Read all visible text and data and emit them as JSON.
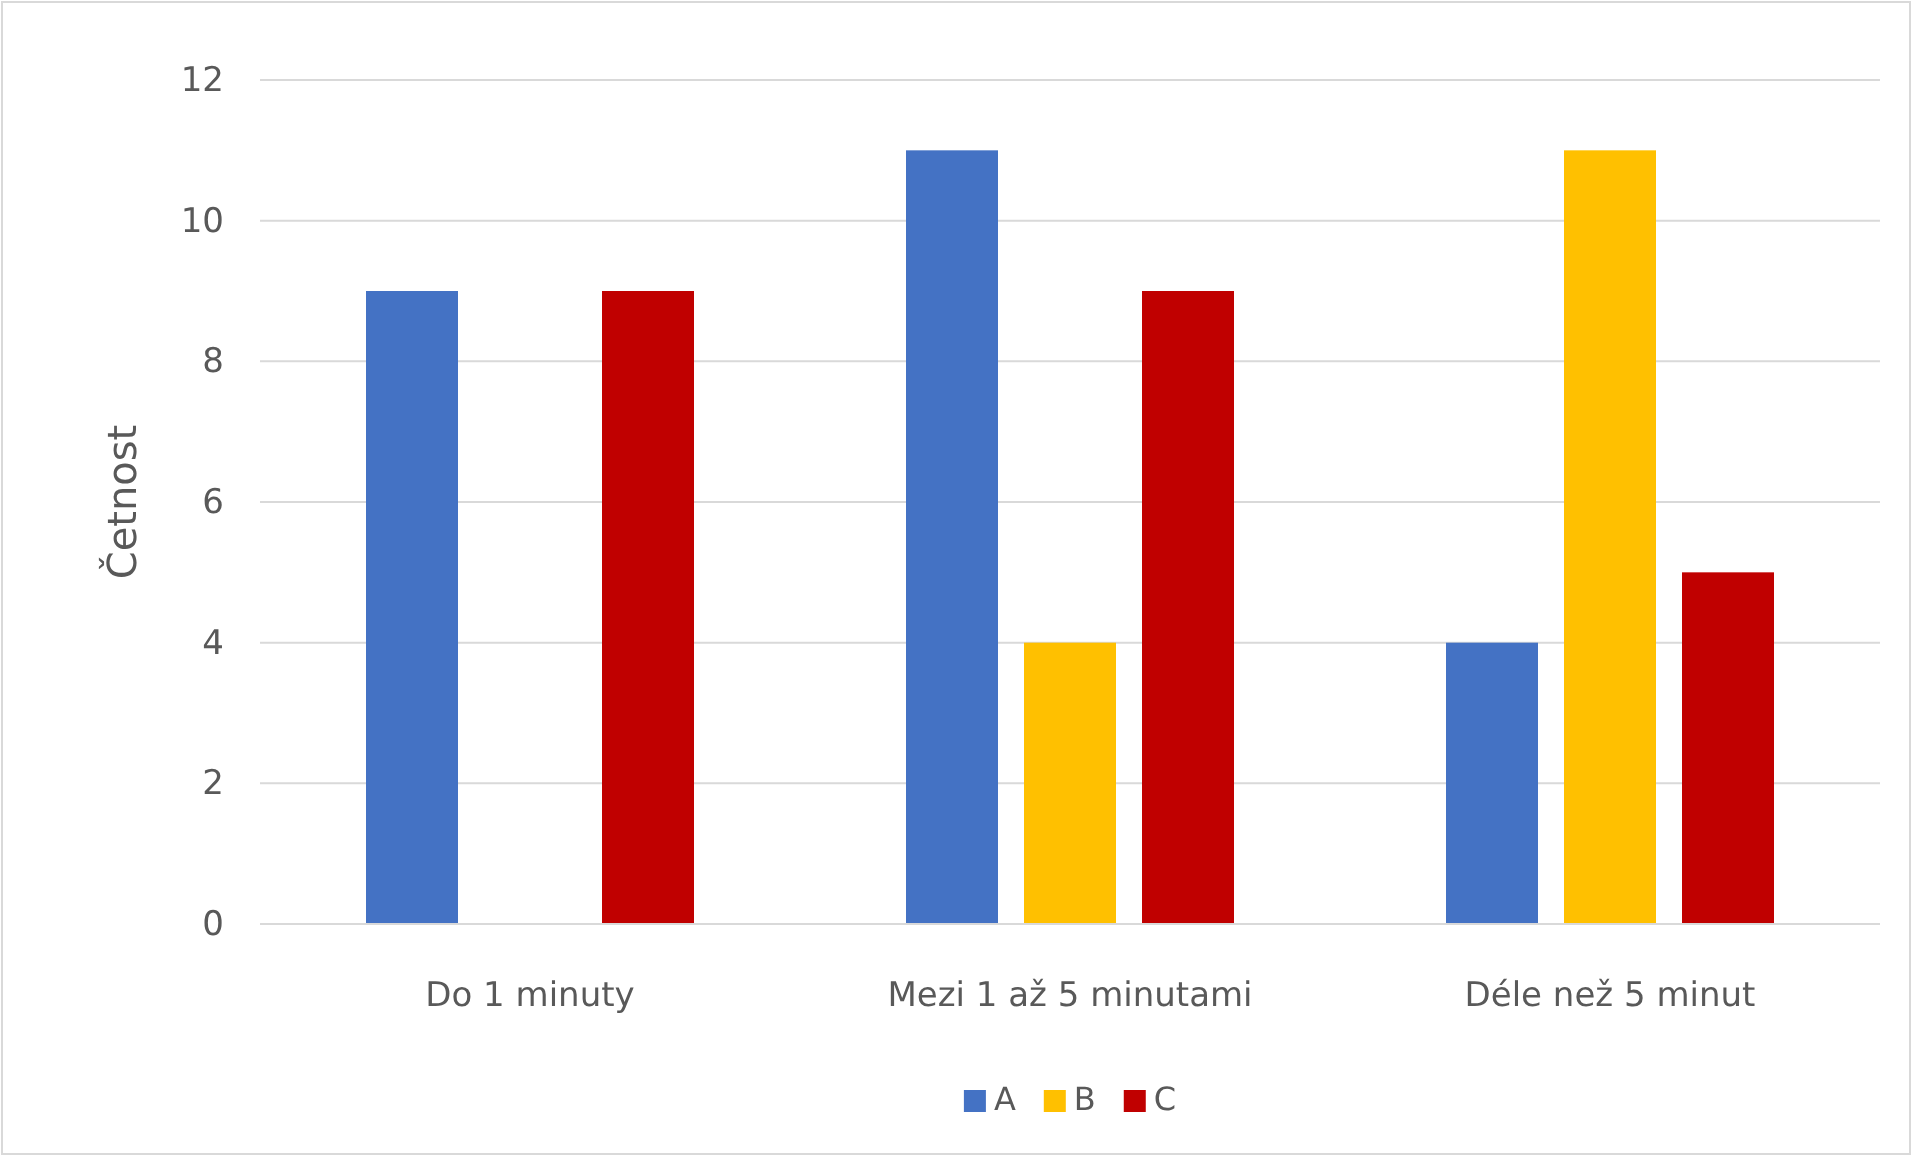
{
  "chart_data": {
    "type": "bar",
    "ylabel": "Četnost",
    "categories": [
      "Do 1 minuty",
      "Mezi 1 až 5 minutami",
      "Déle než 5 minut"
    ],
    "series": [
      {
        "name": "A",
        "color": "#4472c4",
        "values": [
          9,
          11,
          4
        ]
      },
      {
        "name": "B",
        "color": "#ffc000",
        "values": [
          0,
          4,
          11
        ]
      },
      {
        "name": "C",
        "color": "#c00000",
        "values": [
          9,
          9,
          5
        ]
      }
    ],
    "ylim": [
      0,
      12
    ],
    "yticks": [
      0,
      2,
      4,
      6,
      8,
      10,
      12
    ],
    "grid": "y",
    "legend": "bottom"
  }
}
